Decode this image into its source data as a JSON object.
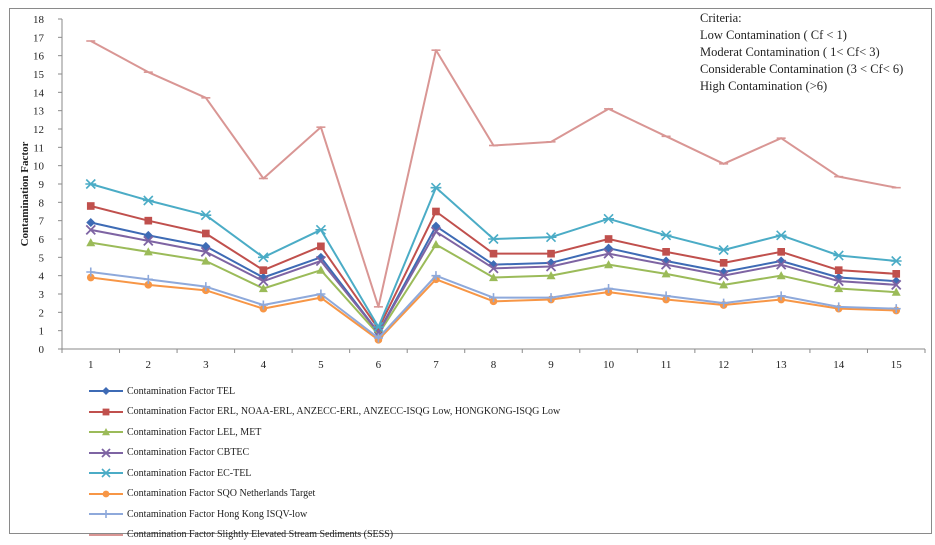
{
  "chart_data": {
    "type": "line",
    "title": "",
    "xlabel": "",
    "ylabel": "Contamination Factor",
    "x": [
      1,
      2,
      3,
      4,
      5,
      6,
      7,
      8,
      9,
      10,
      11,
      12,
      13,
      14,
      15
    ],
    "ylim": [
      0,
      18
    ],
    "yticks": [
      0,
      1,
      2,
      3,
      4,
      5,
      6,
      7,
      8,
      9,
      10,
      11,
      12,
      13,
      14,
      15,
      16,
      17,
      18
    ],
    "grid": false,
    "legend_position": "bottom",
    "series": [
      {
        "name": "Contamination Factor TEL",
        "color": "#3E6BB5",
        "marker": "diamond",
        "values": [
          6.9,
          6.2,
          5.6,
          3.9,
          5.0,
          0.9,
          6.7,
          4.6,
          4.7,
          5.5,
          4.8,
          4.2,
          4.8,
          3.9,
          3.7
        ]
      },
      {
        "name": "Contamination Factor ERL, NOAA-ERL, ANZECC-ERL, ANZECC-ISQG Low, HONGKONG-ISQG Low",
        "color": "#C0504D",
        "marker": "square",
        "values": [
          7.8,
          7.0,
          6.3,
          4.3,
          5.6,
          1.1,
          7.5,
          5.2,
          5.2,
          6.0,
          5.3,
          4.7,
          5.3,
          4.3,
          4.1
        ]
      },
      {
        "name": "Contamination Factor LEL, MET",
        "color": "#9BBB59",
        "marker": "triangle",
        "values": [
          5.8,
          5.3,
          4.8,
          3.3,
          4.3,
          0.8,
          5.7,
          3.9,
          4.0,
          4.6,
          4.1,
          3.5,
          4.0,
          3.3,
          3.1
        ]
      },
      {
        "name": "Contamination Factor CBTEC",
        "color": "#7E64A3",
        "marker": "x",
        "values": [
          6.5,
          5.9,
          5.3,
          3.7,
          4.8,
          0.9,
          6.4,
          4.4,
          4.5,
          5.2,
          4.6,
          4.0,
          4.6,
          3.7,
          3.5
        ]
      },
      {
        "name": "Contamination Factor EC-TEL",
        "color": "#4BACC6",
        "marker": "star",
        "values": [
          9.0,
          8.1,
          7.3,
          5.0,
          6.5,
          1.2,
          8.8,
          6.0,
          6.1,
          7.1,
          6.2,
          5.4,
          6.2,
          5.1,
          4.8
        ]
      },
      {
        "name": "Contamination Factor SQO Netherlands Target",
        "color": "#F79646",
        "marker": "circle",
        "values": [
          3.9,
          3.5,
          3.2,
          2.2,
          2.8,
          0.5,
          3.8,
          2.6,
          2.7,
          3.1,
          2.7,
          2.4,
          2.7,
          2.2,
          2.1
        ]
      },
      {
        "name": "Contamination Factor Hong Kong ISQV-low",
        "color": "#8EA9DB",
        "marker": "plus",
        "values": [
          4.2,
          3.8,
          3.4,
          2.4,
          3.0,
          0.6,
          4.0,
          2.8,
          2.8,
          3.3,
          2.9,
          2.5,
          2.9,
          2.3,
          2.2
        ]
      },
      {
        "name": "Contamination Factor Slightly Elevated Stream Sediments (SESS)",
        "color": "#D99694",
        "marker": "dash",
        "values": [
          16.8,
          15.1,
          13.7,
          9.3,
          12.1,
          2.3,
          16.3,
          11.1,
          11.3,
          13.1,
          11.6,
          10.1,
          11.5,
          9.4,
          8.8
        ]
      }
    ]
  },
  "criteria": {
    "heading": "Criteria:",
    "lines": [
      "Low Contamination  ( Cf < 1)",
      "Moderat Contamination ( 1< Cf< 3)",
      "Considerable Contamination (3 < Cf< 6)",
      "High Contamination (>6)"
    ]
  }
}
